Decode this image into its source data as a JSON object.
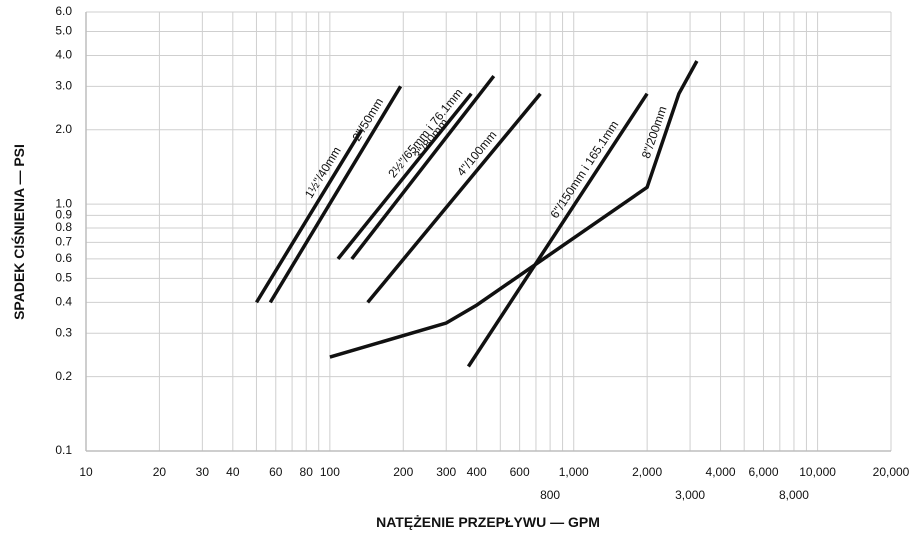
{
  "chart_data": {
    "type": "line",
    "xlabel": "NATĘŻENIE PRZEPŁYWU — GPM",
    "ylabel": "SPADEK CIŚNIENIA — PSI",
    "xscale": "log",
    "yscale": "log",
    "grid": true,
    "xlim": [
      10,
      20000
    ],
    "ylim": [
      0.1,
      6
    ],
    "xticks": [
      10,
      20,
      30,
      40,
      60,
      80,
      100,
      200,
      300,
      400,
      600,
      {
        "value": 1000,
        "label": "1,000"
      },
      {
        "value": 2000,
        "label": "2,000"
      },
      {
        "value": 4000,
        "label": "4,000"
      },
      {
        "value": 6000,
        "label": "6,000"
      },
      {
        "value": 10000,
        "label": "10,000"
      },
      {
        "value": 20000,
        "label": "20,000"
      }
    ],
    "xticks_lower": [
      800,
      {
        "value": 3000,
        "label": "3,000"
      },
      {
        "value": 8000,
        "label": "8,000"
      }
    ],
    "xgrid_minor": [
      50,
      70,
      90,
      500,
      700,
      900,
      5000,
      7000,
      9000
    ],
    "yticks": [
      0.1,
      0.2,
      0.3,
      0.4,
      0.5,
      0.6,
      0.7,
      0.8,
      0.9,
      {
        "value": 1,
        "label": "1.0"
      },
      {
        "value": 2,
        "label": "2.0"
      },
      {
        "value": 3,
        "label": "3.0"
      },
      {
        "value": 4,
        "label": "4.0"
      },
      {
        "value": 5,
        "label": "5.0"
      },
      {
        "value": 6,
        "label": "6.0"
      }
    ],
    "series": [
      {
        "name": "1½\"/40mm",
        "color": "#111111",
        "x": [
          50,
          135
        ],
        "values": [
          0.4,
          2.0
        ]
      },
      {
        "name": "2\"/50mm",
        "color": "#111111",
        "x": [
          57,
          195
        ],
        "values": [
          0.4,
          3.0
        ]
      },
      {
        "name": "2½\"/65mm i 76.1mm",
        "color": "#111111",
        "x": [
          108,
          380
        ],
        "values": [
          0.6,
          2.8
        ]
      },
      {
        "name": "3\"/80mm",
        "color": "#111111",
        "x": [
          123,
          470
        ],
        "values": [
          0.6,
          3.3
        ]
      },
      {
        "name": "4\"/100mm",
        "color": "#111111",
        "x": [
          143,
          730
        ],
        "values": [
          0.4,
          2.8
        ]
      },
      {
        "name": "6\"/150mm i 165.1mm",
        "color": "#111111",
        "x": [
          370,
          2000
        ],
        "values": [
          0.22,
          2.8
        ]
      },
      {
        "name": "8\"/200mm",
        "color": "#111111",
        "x": [
          100,
          300,
          400,
          2000,
          2700,
          3200
        ],
        "values": [
          0.24,
          0.33,
          0.39,
          1.17,
          2.8,
          3.8
        ]
      }
    ]
  }
}
